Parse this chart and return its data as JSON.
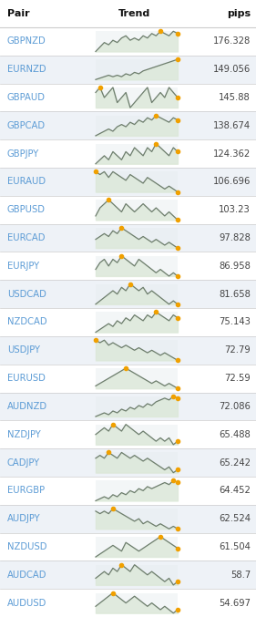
{
  "title_pair": "Pair",
  "title_trend": "Trend",
  "title_pips": "pips",
  "rows": [
    {
      "pair": "GBPNZD",
      "pips": "176.328"
    },
    {
      "pair": "EURNZD",
      "pips": "149.056"
    },
    {
      "pair": "GBPAUD",
      "pips": "145.88"
    },
    {
      "pair": "GBPCAD",
      "pips": "138.674"
    },
    {
      "pair": "GBPJPY",
      "pips": "124.362"
    },
    {
      "pair": "EURAUD",
      "pips": "106.696"
    },
    {
      "pair": "GBPUSD",
      "pips": "103.23"
    },
    {
      "pair": "EURCAD",
      "pips": "97.828"
    },
    {
      "pair": "EURJPY",
      "pips": "86.958"
    },
    {
      "pair": "USDCAD",
      "pips": "81.658"
    },
    {
      "pair": "NZDCAD",
      "pips": "75.143"
    },
    {
      "pair": "USDJPY",
      "pips": "72.79"
    },
    {
      "pair": "EURUSD",
      "pips": "72.59"
    },
    {
      "pair": "AUDNZD",
      "pips": "72.086"
    },
    {
      "pair": "NZDJPY",
      "pips": "65.488"
    },
    {
      "pair": "CADJPY",
      "pips": "65.242"
    },
    {
      "pair": "EURGBP",
      "pips": "64.452"
    },
    {
      "pair": "AUDJPY",
      "pips": "62.524"
    },
    {
      "pair": "NZDUSD",
      "pips": "61.504"
    },
    {
      "pair": "AUDCAD",
      "pips": "58.7"
    },
    {
      "pair": "AUDUSD",
      "pips": "54.697"
    }
  ],
  "bg_color": "#ffffff",
  "row_alt_color": "#eef2f7",
  "row_norm_color": "#ffffff",
  "header_text_color": "#111111",
  "pair_text_color": "#5b9bd5",
  "pips_text_color": "#444444",
  "line_color": "#6d7d6d",
  "fill_color": "#dce8d8",
  "dot_color": "#f0a000",
  "sparklines": [
    [
      3,
      5,
      7,
      6,
      8,
      7,
      9,
      10,
      8,
      9,
      8,
      10,
      9,
      11,
      10,
      12,
      11,
      10,
      12,
      11
    ],
    [
      2,
      3,
      4,
      5,
      4,
      5,
      4,
      6,
      5,
      7,
      6,
      8,
      9,
      10,
      11,
      12,
      13,
      14,
      15,
      16
    ],
    [
      8,
      9,
      7,
      8,
      9,
      6,
      7,
      8,
      5,
      6,
      7,
      8,
      9,
      6,
      7,
      8,
      7,
      9,
      8,
      7
    ],
    [
      3,
      4,
      5,
      6,
      5,
      7,
      8,
      7,
      9,
      8,
      10,
      9,
      11,
      10,
      12,
      11,
      10,
      9,
      11,
      10
    ],
    [
      5,
      6,
      7,
      6,
      8,
      7,
      6,
      8,
      7,
      9,
      8,
      7,
      9,
      8,
      10,
      9,
      8,
      7,
      9,
      8
    ],
    [
      10,
      9,
      10,
      8,
      10,
      9,
      8,
      7,
      9,
      8,
      7,
      6,
      8,
      7,
      6,
      5,
      4,
      5,
      4,
      3
    ],
    [
      6,
      8,
      9,
      10,
      9,
      8,
      7,
      9,
      8,
      7,
      8,
      9,
      8,
      7,
      8,
      7,
      6,
      7,
      6,
      5
    ],
    [
      6,
      7,
      8,
      7,
      9,
      8,
      10,
      9,
      8,
      7,
      6,
      7,
      6,
      5,
      6,
      5,
      4,
      5,
      4,
      3
    ],
    [
      5,
      7,
      8,
      6,
      8,
      7,
      9,
      8,
      7,
      6,
      8,
      7,
      6,
      5,
      4,
      5,
      4,
      3,
      4,
      3
    ],
    [
      4,
      5,
      6,
      7,
      8,
      7,
      9,
      8,
      10,
      9,
      8,
      9,
      7,
      8,
      7,
      6,
      5,
      4,
      5,
      4
    ],
    [
      3,
      4,
      5,
      6,
      5,
      7,
      6,
      8,
      7,
      9,
      8,
      7,
      9,
      8,
      10,
      9,
      8,
      7,
      9,
      8
    ],
    [
      9,
      8,
      9,
      7,
      8,
      7,
      6,
      7,
      6,
      5,
      6,
      5,
      4,
      5,
      4,
      3,
      4,
      3,
      2,
      1
    ],
    [
      3,
      4,
      5,
      6,
      7,
      8,
      9,
      10,
      9,
      8,
      7,
      6,
      5,
      4,
      5,
      4,
      3,
      4,
      3,
      2
    ],
    [
      2,
      3,
      4,
      3,
      5,
      4,
      6,
      5,
      7,
      6,
      8,
      7,
      9,
      8,
      10,
      11,
      12,
      11,
      13,
      12
    ],
    [
      5,
      6,
      7,
      6,
      8,
      7,
      6,
      8,
      7,
      6,
      5,
      6,
      5,
      4,
      3,
      4,
      3,
      4,
      2,
      3
    ],
    [
      8,
      9,
      8,
      10,
      9,
      8,
      10,
      9,
      8,
      9,
      8,
      7,
      8,
      7,
      6,
      5,
      4,
      5,
      3,
      4
    ],
    [
      3,
      4,
      5,
      4,
      6,
      5,
      7,
      6,
      8,
      7,
      9,
      8,
      10,
      9,
      10,
      11,
      12,
      11,
      13,
      12
    ],
    [
      9,
      8,
      9,
      8,
      10,
      9,
      8,
      7,
      6,
      5,
      6,
      4,
      5,
      4,
      3,
      4,
      3,
      2,
      3,
      2
    ],
    [
      4,
      5,
      6,
      7,
      8,
      7,
      6,
      9,
      8,
      7,
      6,
      7,
      8,
      9,
      10,
      11,
      10,
      9,
      8,
      7
    ],
    [
      5,
      6,
      7,
      6,
      8,
      7,
      9,
      8,
      7,
      9,
      8,
      7,
      6,
      7,
      6,
      5,
      4,
      5,
      3,
      4
    ],
    [
      5,
      6,
      7,
      8,
      9,
      8,
      7,
      6,
      7,
      8,
      7,
      6,
      5,
      6,
      5,
      4,
      5,
      4,
      3,
      4
    ]
  ]
}
